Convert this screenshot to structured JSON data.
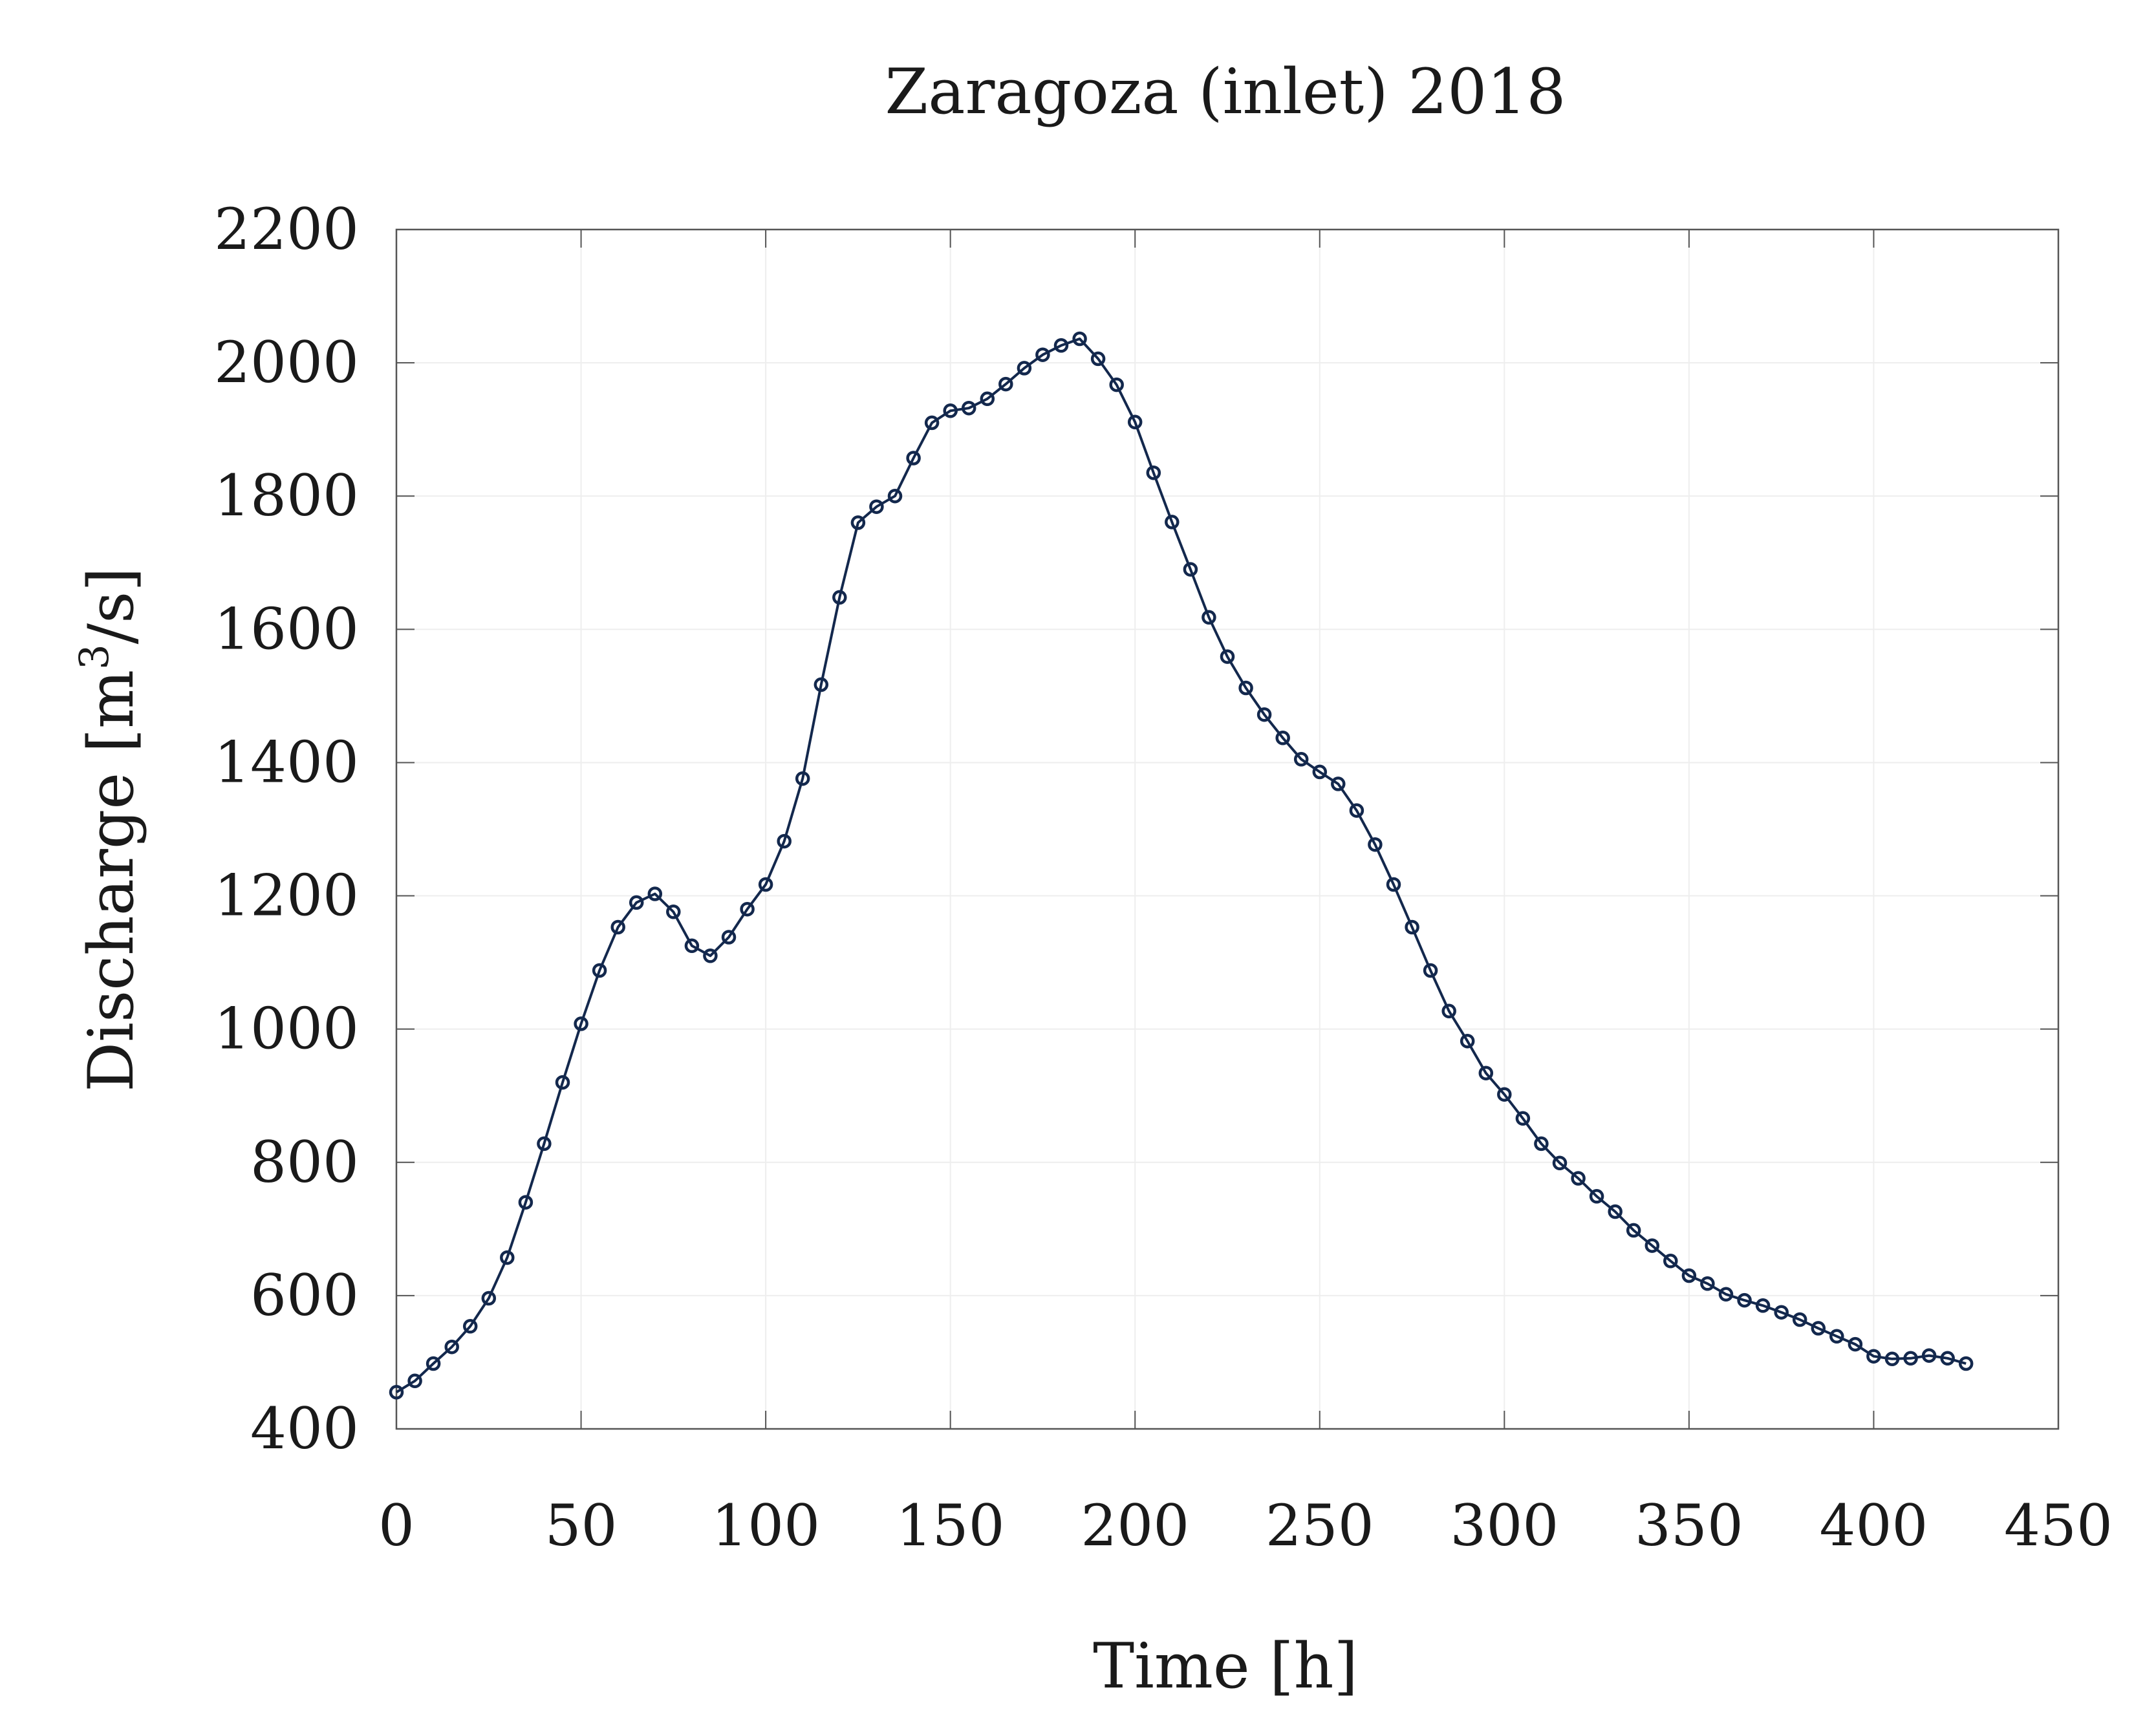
{
  "chart_data": {
    "type": "line",
    "title": "Zaragoza (inlet) 2018",
    "xlabel": "Time [h]",
    "ylabel_main": "Discharge [m",
    "ylabel_sup": "3",
    "ylabel_end": "/s]",
    "xlim": [
      0,
      450
    ],
    "ylim": [
      400,
      2200
    ],
    "xticks": [
      0,
      50,
      100,
      150,
      200,
      250,
      300,
      350,
      400,
      450
    ],
    "yticks": [
      400,
      600,
      800,
      1000,
      1200,
      1400,
      1600,
      1800,
      2000,
      2200
    ],
    "xtick_labels": [
      "0",
      "50",
      "100",
      "150",
      "200",
      "250",
      "300",
      "350",
      "400",
      "450"
    ],
    "ytick_labels": [
      "400",
      "600",
      "800",
      "1000",
      "1200",
      "1400",
      "1600",
      "1800",
      "2000",
      "2200"
    ],
    "grid": true,
    "series": [
      {
        "name": "Discharge",
        "color": "#13284d",
        "marker": "circle",
        "x": [
          0,
          5,
          10,
          15,
          20,
          25,
          30,
          35,
          40,
          45,
          50,
          55,
          60,
          65,
          70,
          75,
          80,
          85,
          90,
          95,
          100,
          105,
          110,
          115,
          120,
          125,
          130,
          135,
          140,
          145,
          150,
          155,
          160,
          165,
          170,
          175,
          180,
          185,
          190,
          195,
          200,
          205,
          210,
          215,
          220,
          225,
          230,
          235,
          240,
          245,
          250,
          255,
          260,
          265,
          270,
          275,
          280,
          285,
          290,
          295,
          300,
          305,
          310,
          315,
          320,
          325,
          330,
          335,
          340,
          345,
          350,
          355,
          360,
          365,
          370,
          375,
          380,
          385,
          390,
          395,
          400,
          405,
          410,
          415,
          420,
          425
        ],
        "y": [
          455,
          472,
          498,
          523,
          554,
          596,
          657,
          740,
          828,
          920,
          1008,
          1088,
          1153,
          1190,
          1203,
          1176,
          1125,
          1110,
          1138,
          1180,
          1217,
          1282,
          1376,
          1517,
          1648,
          1760,
          1784,
          1800,
          1857,
          1910,
          1928,
          1932,
          1946,
          1968,
          1992,
          2012,
          2026,
          2036,
          2006,
          1967,
          1911,
          1835,
          1761,
          1690,
          1618,
          1559,
          1512,
          1472,
          1437,
          1405,
          1386,
          1368,
          1328,
          1277,
          1217,
          1153,
          1088,
          1027,
          982,
          934,
          902,
          866,
          828,
          799,
          776,
          749,
          726,
          698,
          675,
          652,
          630,
          618,
          602,
          593,
          585,
          575,
          564,
          551,
          539,
          527,
          509,
          505,
          506,
          510,
          506,
          498
        ]
      }
    ]
  }
}
